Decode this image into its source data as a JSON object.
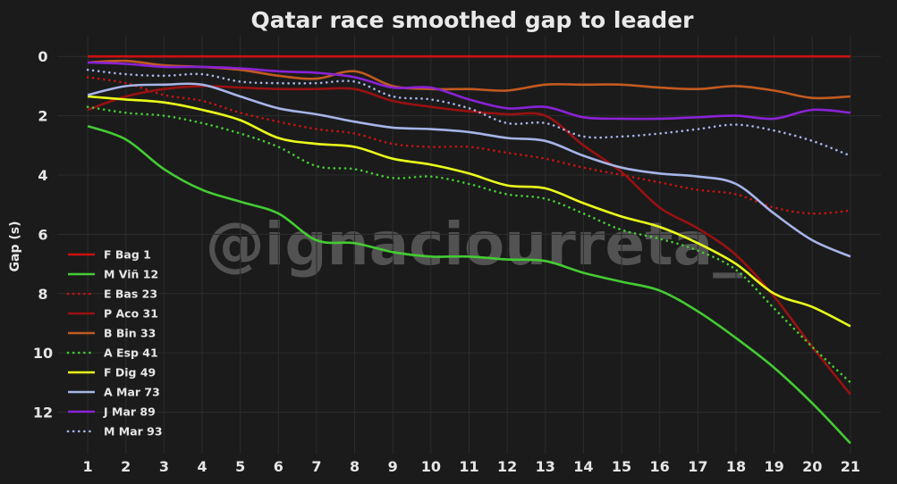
{
  "chart_data": {
    "type": "line",
    "title": "Qatar race smoothed gap to leader",
    "xlabel": "",
    "ylabel": "Gap (s)",
    "watermark": "@ignaciourreta_",
    "x": [
      1,
      2,
      3,
      4,
      5,
      6,
      7,
      8,
      9,
      10,
      11,
      12,
      13,
      14,
      15,
      16,
      17,
      18,
      19,
      20,
      21
    ],
    "xlim": [
      0.2,
      21.8
    ],
    "ylim": [
      13.4,
      -0.7
    ],
    "y_inverted": true,
    "yticks": [
      0,
      2,
      4,
      6,
      8,
      10,
      12
    ],
    "grid": true,
    "legend_position": "center-left",
    "series": [
      {
        "name": "F Bag 1",
        "color": "#cc1111",
        "dash": "solid",
        "values": [
          0,
          0,
          0,
          0,
          0,
          0,
          0,
          0,
          0,
          0,
          0,
          0,
          0,
          0,
          0,
          0,
          0,
          0,
          0,
          0,
          0
        ]
      },
      {
        "name": "M Viñ 12",
        "color": "#44cc33",
        "dash": "solid",
        "values": [
          2.35,
          2.8,
          3.8,
          4.5,
          4.9,
          5.3,
          6.2,
          6.3,
          6.6,
          6.75,
          6.75,
          6.85,
          6.9,
          7.3,
          7.6,
          7.9,
          8.6,
          9.5,
          10.5,
          11.7,
          13.05
        ]
      },
      {
        "name": "E Bas 23",
        "color": "#cc1111",
        "dash": "dotted",
        "values": [
          0.7,
          0.9,
          1.3,
          1.5,
          1.9,
          2.2,
          2.45,
          2.6,
          2.95,
          3.05,
          3.05,
          3.25,
          3.45,
          3.75,
          4.0,
          4.25,
          4.5,
          4.65,
          5.1,
          5.3,
          5.2
        ]
      },
      {
        "name": "P Aco 31",
        "color": "#991111",
        "dash": "solid",
        "values": [
          1.8,
          1.35,
          1.1,
          1.0,
          1.05,
          1.1,
          1.1,
          1.1,
          1.5,
          1.7,
          1.85,
          1.95,
          2.0,
          3.0,
          3.9,
          5.1,
          5.8,
          6.7,
          8.1,
          9.8,
          11.4
        ]
      },
      {
        "name": "B Bin 33",
        "color": "#c25a20",
        "dash": "solid",
        "values": [
          0.2,
          0.15,
          0.3,
          0.35,
          0.45,
          0.65,
          0.75,
          0.5,
          1.0,
          1.1,
          1.1,
          1.15,
          0.95,
          0.95,
          0.95,
          1.05,
          1.1,
          1.0,
          1.15,
          1.4,
          1.35
        ]
      },
      {
        "name": "A Esp 41",
        "color": "#44cc33",
        "dash": "dotted",
        "values": [
          1.7,
          1.9,
          2.0,
          2.25,
          2.6,
          3.05,
          3.7,
          3.8,
          4.1,
          4.05,
          4.3,
          4.65,
          4.8,
          5.3,
          5.85,
          6.15,
          6.55,
          7.2,
          8.5,
          9.8,
          11.0
        ]
      },
      {
        "name": "F Dig 49",
        "color": "#eaff1a",
        "dash": "solid",
        "values": [
          1.35,
          1.45,
          1.55,
          1.8,
          2.15,
          2.75,
          2.95,
          3.05,
          3.45,
          3.65,
          3.95,
          4.35,
          4.45,
          4.95,
          5.4,
          5.75,
          6.3,
          7.0,
          8.0,
          8.45,
          9.1
        ]
      },
      {
        "name": "A Mar 73",
        "color": "#a6b4e8",
        "dash": "solid",
        "values": [
          1.3,
          1.0,
          0.95,
          0.95,
          1.35,
          1.75,
          1.95,
          2.2,
          2.4,
          2.45,
          2.55,
          2.75,
          2.85,
          3.35,
          3.75,
          3.95,
          4.05,
          4.3,
          5.3,
          6.2,
          6.75
        ]
      },
      {
        "name": "J Mar 89",
        "color": "#8a22d6",
        "dash": "solid",
        "values": [
          0.2,
          0.25,
          0.35,
          0.35,
          0.4,
          0.5,
          0.55,
          0.7,
          1.05,
          1.05,
          1.45,
          1.75,
          1.7,
          2.05,
          2.1,
          2.1,
          2.05,
          2.0,
          2.1,
          1.8,
          1.9
        ]
      },
      {
        "name": "M Mar 93",
        "color": "#a6b4e8",
        "dash": "dotted",
        "values": [
          0.45,
          0.6,
          0.65,
          0.6,
          0.85,
          0.9,
          0.9,
          0.85,
          1.35,
          1.45,
          1.75,
          2.25,
          2.25,
          2.7,
          2.7,
          2.6,
          2.45,
          2.3,
          2.5,
          2.85,
          3.35
        ]
      }
    ]
  }
}
